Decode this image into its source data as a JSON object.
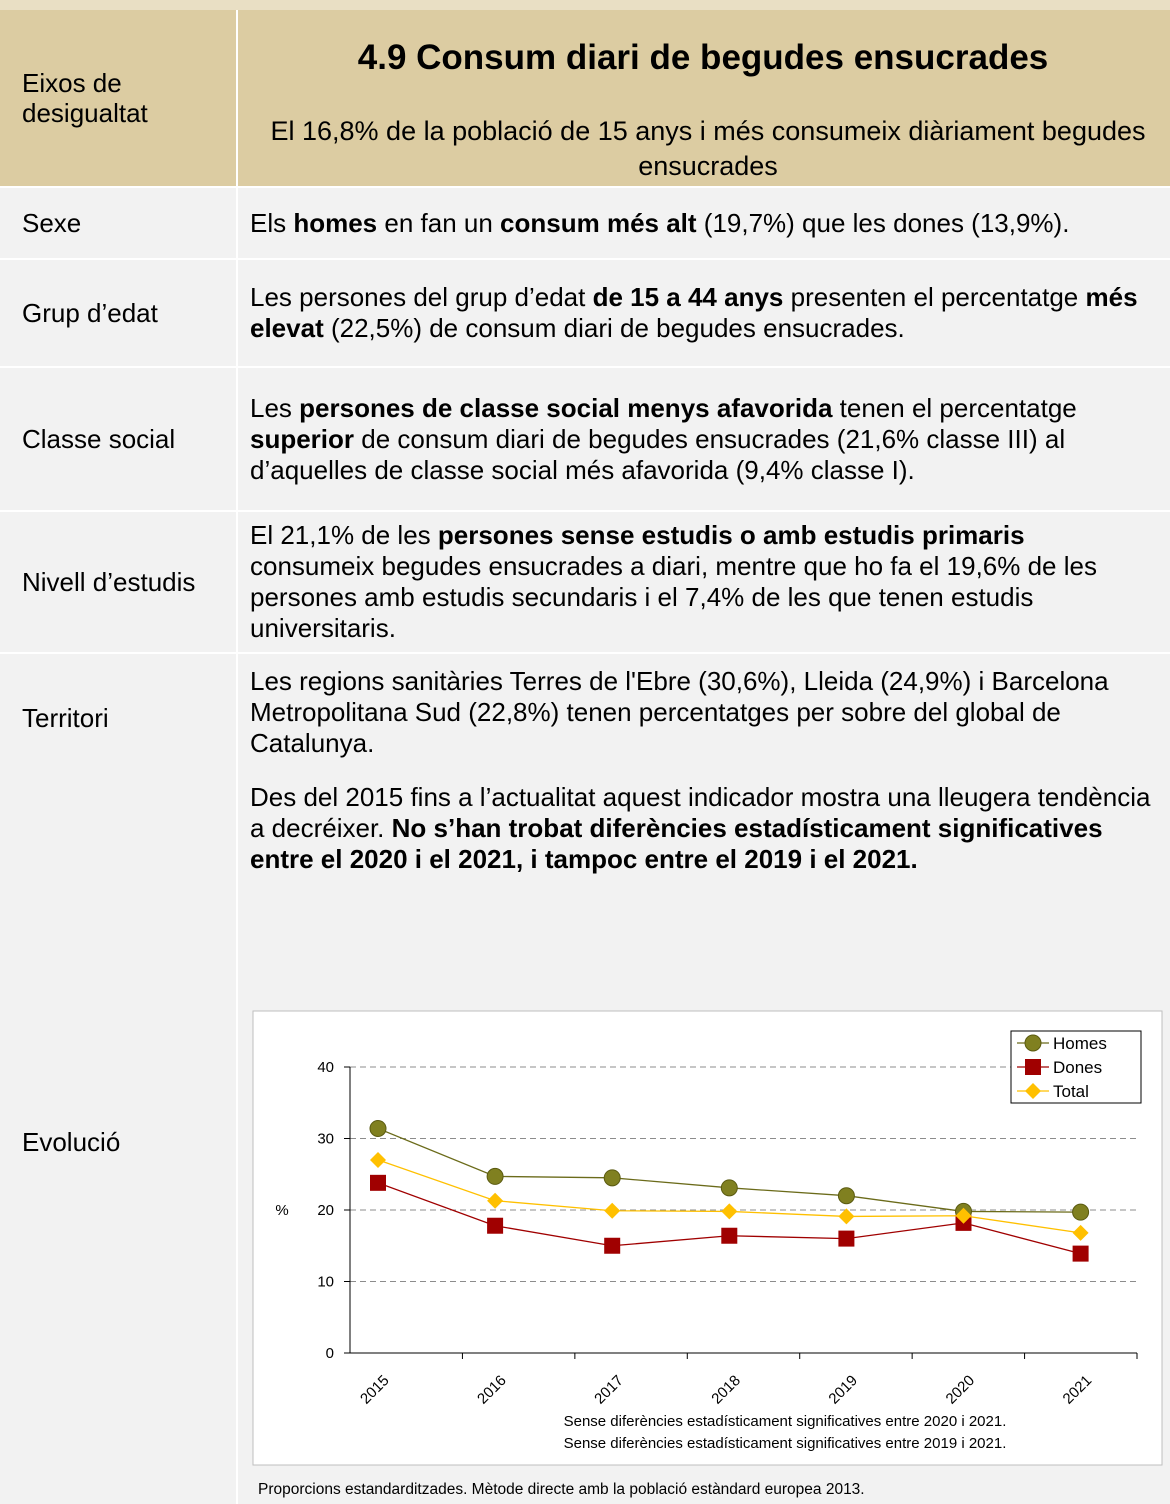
{
  "header": {
    "axis_label": "Eixos de desigualtat",
    "title": "4.9 Consum diari de begudes ensucrades",
    "subtitle": "El 16,8% de la població de 15 anys i més consumeix diàriament begudes ensucrades"
  },
  "rows": [
    {
      "label": "Sexe",
      "paragraphs": [
        [
          {
            "text": "Els "
          },
          {
            "text": "homes",
            "bold": true
          },
          {
            "text": " en fan un "
          },
          {
            "text": "consum més alt",
            "bold": true
          },
          {
            "text": " (19,7%) que les dones (13,9%)."
          }
        ]
      ]
    },
    {
      "label": "Grup d’edat",
      "paragraphs": [
        [
          {
            "text": "Les persones del grup d’edat "
          },
          {
            "text": "de 15 a 44 anys",
            "bold": true
          },
          {
            "text": " presenten el percentatge "
          },
          {
            "text": "més elevat",
            "bold": true
          },
          {
            "text": " (22,5%) de consum diari de begudes ensucrades."
          }
        ]
      ]
    },
    {
      "label": "Classe social",
      "paragraphs": [
        [
          {
            "text": "Les "
          },
          {
            "text": "persones de classe social menys afavorida",
            "bold": true
          },
          {
            "text": " tenen el percentatge "
          },
          {
            "text": "superior",
            "bold": true
          },
          {
            "text": " de consum diari de begudes ensucrades (21,6% classe III) al d’aquelles de classe social més afavorida (9,4% classe I)."
          }
        ]
      ]
    },
    {
      "label": "Nivell d’estudis",
      "paragraphs": [
        [
          {
            "text": "El 21,1% de les "
          },
          {
            "text": "persones sense estudis o amb estudis primaris",
            "bold": true
          },
          {
            "text": " consumeix begudes ensucrades a diari, mentre que ho fa el 19,6% de les persones amb estudis secundaris i el 7,4% de les que tenen estudis universitaris."
          }
        ]
      ]
    },
    {
      "label": "Territori",
      "paragraphs": [
        [
          {
            "text": "Les regions sanitàries Terres de l'Ebre (30,6%), Lleida (24,9%) i Barcelona Metropolitana Sud (22,8%) tenen percentatges per sobre del global de Catalunya."
          }
        ]
      ]
    },
    {
      "label": "Evolució",
      "paragraphs": [
        [
          {
            "text": "Des del 2015 fins a l’actualitat aquest indicador mostra una lleugera tendència a decréixer. "
          },
          {
            "text": "No s’han trobat diferències estadísticament significatives entre el 2020 i el 2021, i tampoc entre el 2019 i el 2021.",
            "bold": true
          }
        ]
      ]
    }
  ],
  "chart_data": {
    "type": "line",
    "ylabel": "%",
    "categories": [
      "2015",
      "2016",
      "2017",
      "2018",
      "2019",
      "2020",
      "2021"
    ],
    "series": [
      {
        "name": "Homes",
        "color": "#6b6b1a",
        "marker_color": "#808020",
        "marker": "circle",
        "values": [
          31.4,
          24.7,
          24.5,
          23.1,
          22.0,
          19.8,
          19.7
        ]
      },
      {
        "name": "Dones",
        "color": "#a00000",
        "marker_color": "#a00000",
        "marker": "square",
        "values": [
          23.8,
          17.8,
          15.0,
          16.4,
          16.0,
          18.2,
          13.9
        ]
      },
      {
        "name": "Total",
        "color": "#ffc000",
        "marker_color": "#ffc000",
        "marker": "diamond",
        "values": [
          27.0,
          21.3,
          19.9,
          19.8,
          19.1,
          19.2,
          16.8
        ]
      }
    ],
    "ylim": [
      0,
      40
    ],
    "yticks": [
      0,
      10,
      20,
      30,
      40
    ],
    "grid": true,
    "legend": "right",
    "notes": [
      "Sense diferències estadísticament significatives entre 2020 i 2021.",
      "Sense diferències estadísticament significatives entre 2019 i 2021."
    ]
  },
  "footnote": "Proporcions estandarditzades. Mètode directe amb la població estàndard europea 2013."
}
